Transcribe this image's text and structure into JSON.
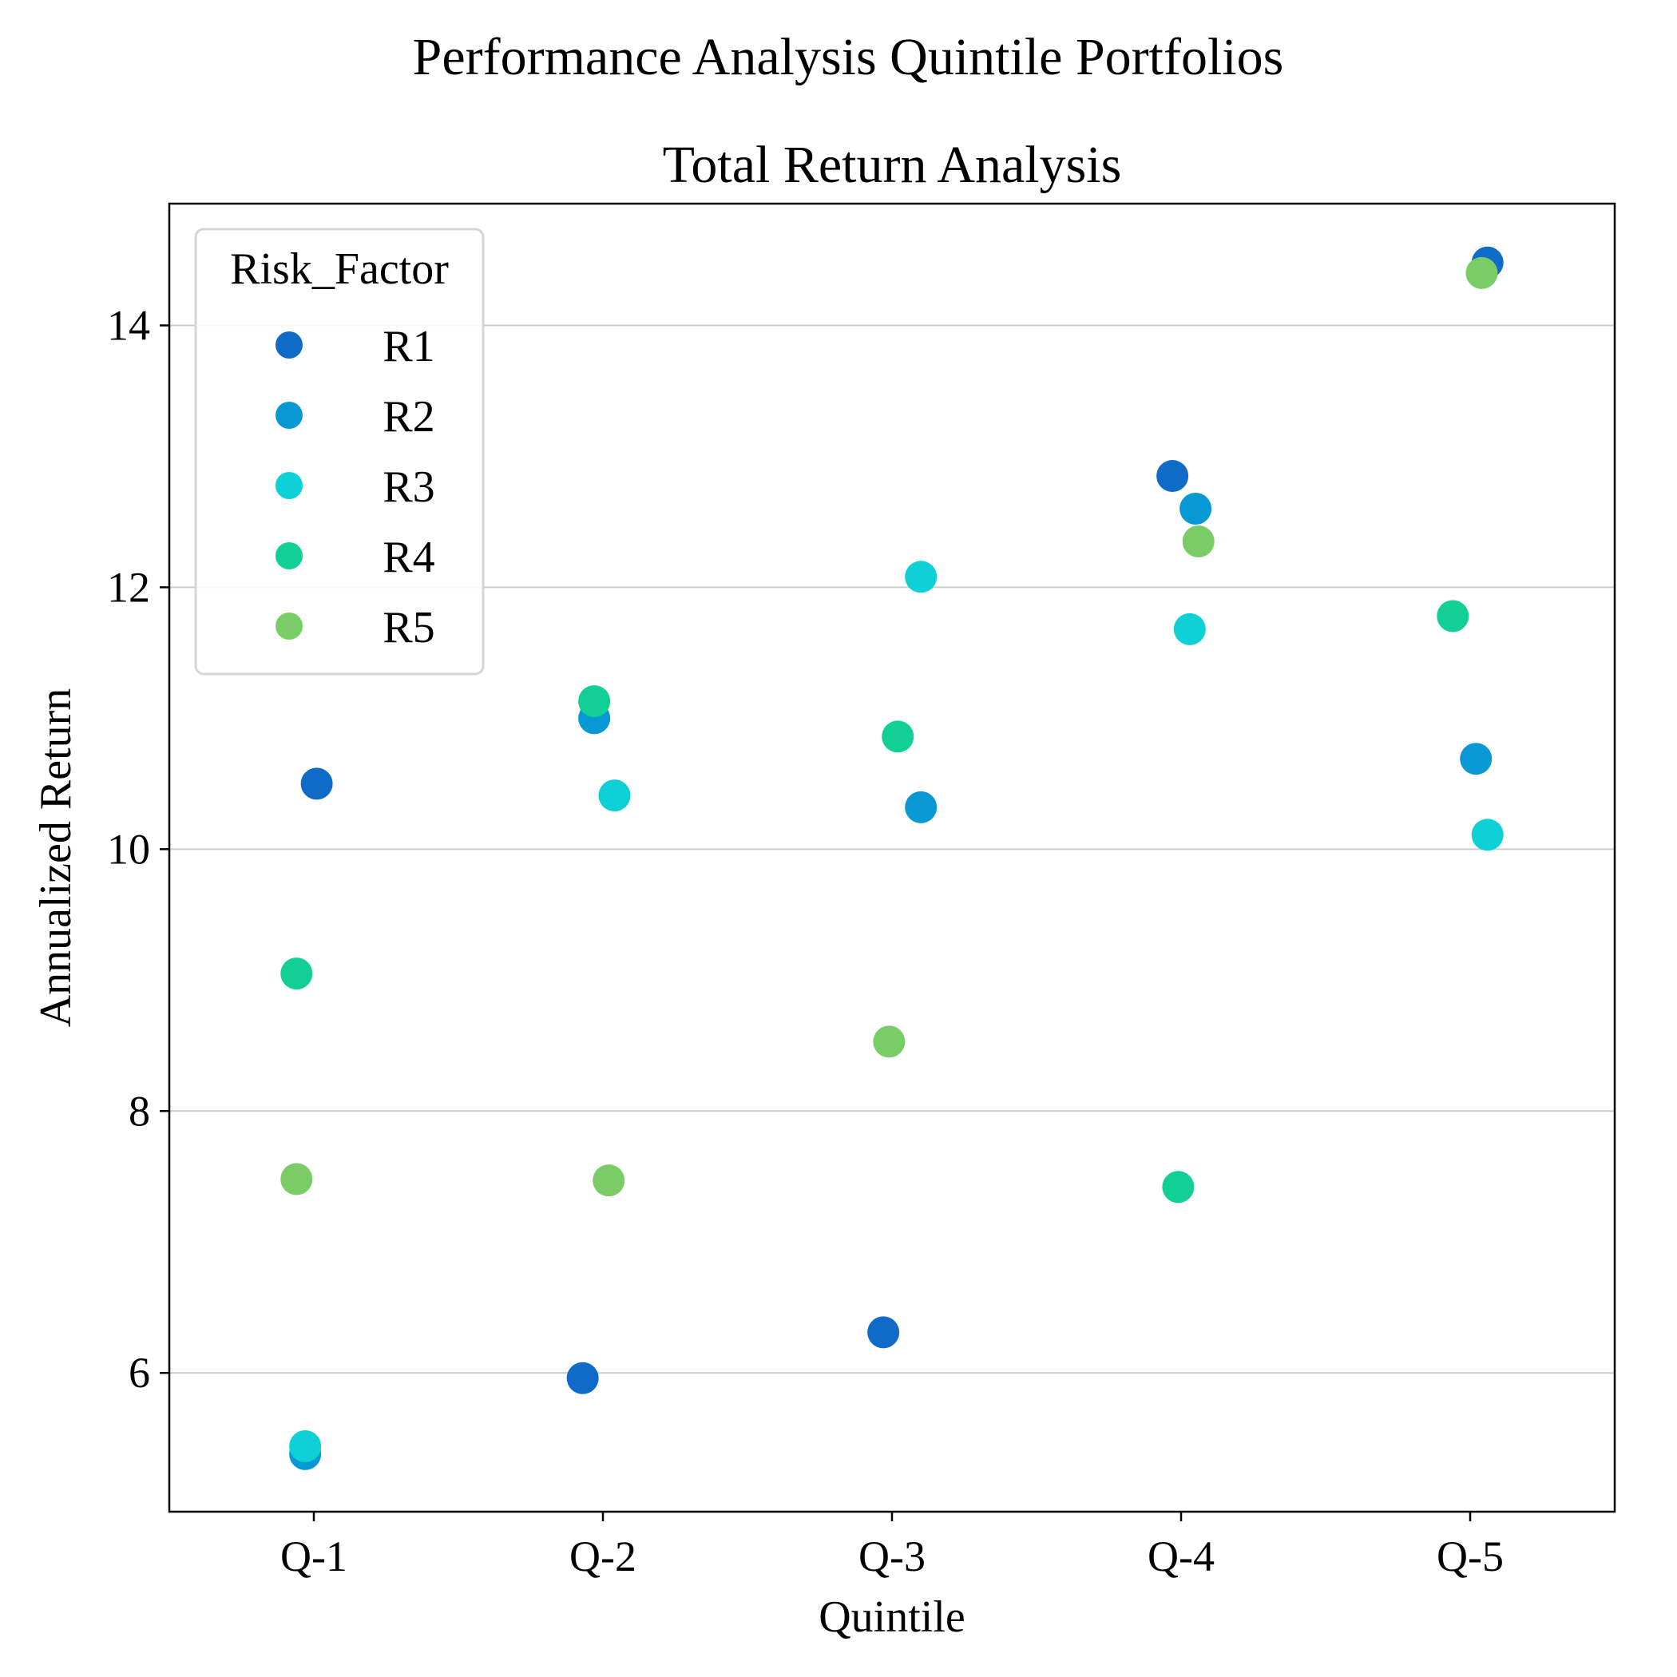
{
  "chart_data": {
    "type": "scatter",
    "suptitle": "Performance Analysis Quintile Portfolios",
    "title": "Total Return Analysis",
    "xlabel": "Quintile",
    "ylabel": "Annualized Return",
    "categories": [
      "Q-1",
      "Q-2",
      "Q-3",
      "Q-4",
      "Q-5"
    ],
    "yticks": [
      6,
      8,
      10,
      12,
      14
    ],
    "ylim": [
      4.94,
      14.93
    ],
    "grid": "y",
    "legend": {
      "title": "Risk_Factor",
      "placement": "upper-left"
    },
    "series": [
      {
        "name": "R1",
        "color": "#0f6bc7",
        "points": [
          {
            "cat": 0,
            "jitter": 0.01,
            "y": 10.5
          },
          {
            "cat": 1,
            "jitter": -0.07,
            "y": 5.96
          },
          {
            "cat": 2,
            "jitter": -0.03,
            "y": 6.31
          },
          {
            "cat": 3,
            "jitter": -0.03,
            "y": 12.85
          },
          {
            "cat": 4,
            "jitter": 0.06,
            "y": 14.48
          }
        ]
      },
      {
        "name": "R2",
        "color": "#0898d4",
        "points": [
          {
            "cat": 0,
            "jitter": -0.03,
            "y": 5.38
          },
          {
            "cat": 1,
            "jitter": -0.03,
            "y": 11.0
          },
          {
            "cat": 2,
            "jitter": 0.1,
            "y": 10.32
          },
          {
            "cat": 3,
            "jitter": 0.05,
            "y": 12.6
          },
          {
            "cat": 4,
            "jitter": 0.02,
            "y": 10.69
          }
        ]
      },
      {
        "name": "R3",
        "color": "#0dd1d6",
        "points": [
          {
            "cat": 0,
            "jitter": -0.03,
            "y": 5.44
          },
          {
            "cat": 1,
            "jitter": 0.04,
            "y": 10.41
          },
          {
            "cat": 2,
            "jitter": 0.1,
            "y": 12.08
          },
          {
            "cat": 3,
            "jitter": 0.03,
            "y": 11.68
          },
          {
            "cat": 4,
            "jitter": 0.06,
            "y": 10.11
          }
        ]
      },
      {
        "name": "R4",
        "color": "#12cf96",
        "points": [
          {
            "cat": 0,
            "jitter": -0.06,
            "y": 9.05
          },
          {
            "cat": 1,
            "jitter": -0.03,
            "y": 11.13
          },
          {
            "cat": 2,
            "jitter": 0.02,
            "y": 10.86
          },
          {
            "cat": 3,
            "jitter": -0.01,
            "y": 7.42
          },
          {
            "cat": 4,
            "jitter": -0.06,
            "y": 11.78
          }
        ]
      },
      {
        "name": "R5",
        "color": "#7acd66",
        "points": [
          {
            "cat": 0,
            "jitter": -0.06,
            "y": 7.48
          },
          {
            "cat": 1,
            "jitter": 0.02,
            "y": 7.47
          },
          {
            "cat": 2,
            "jitter": -0.01,
            "y": 8.53
          },
          {
            "cat": 3,
            "jitter": 0.06,
            "y": 12.35
          },
          {
            "cat": 4,
            "jitter": 0.04,
            "y": 14.4
          }
        ]
      }
    ]
  }
}
